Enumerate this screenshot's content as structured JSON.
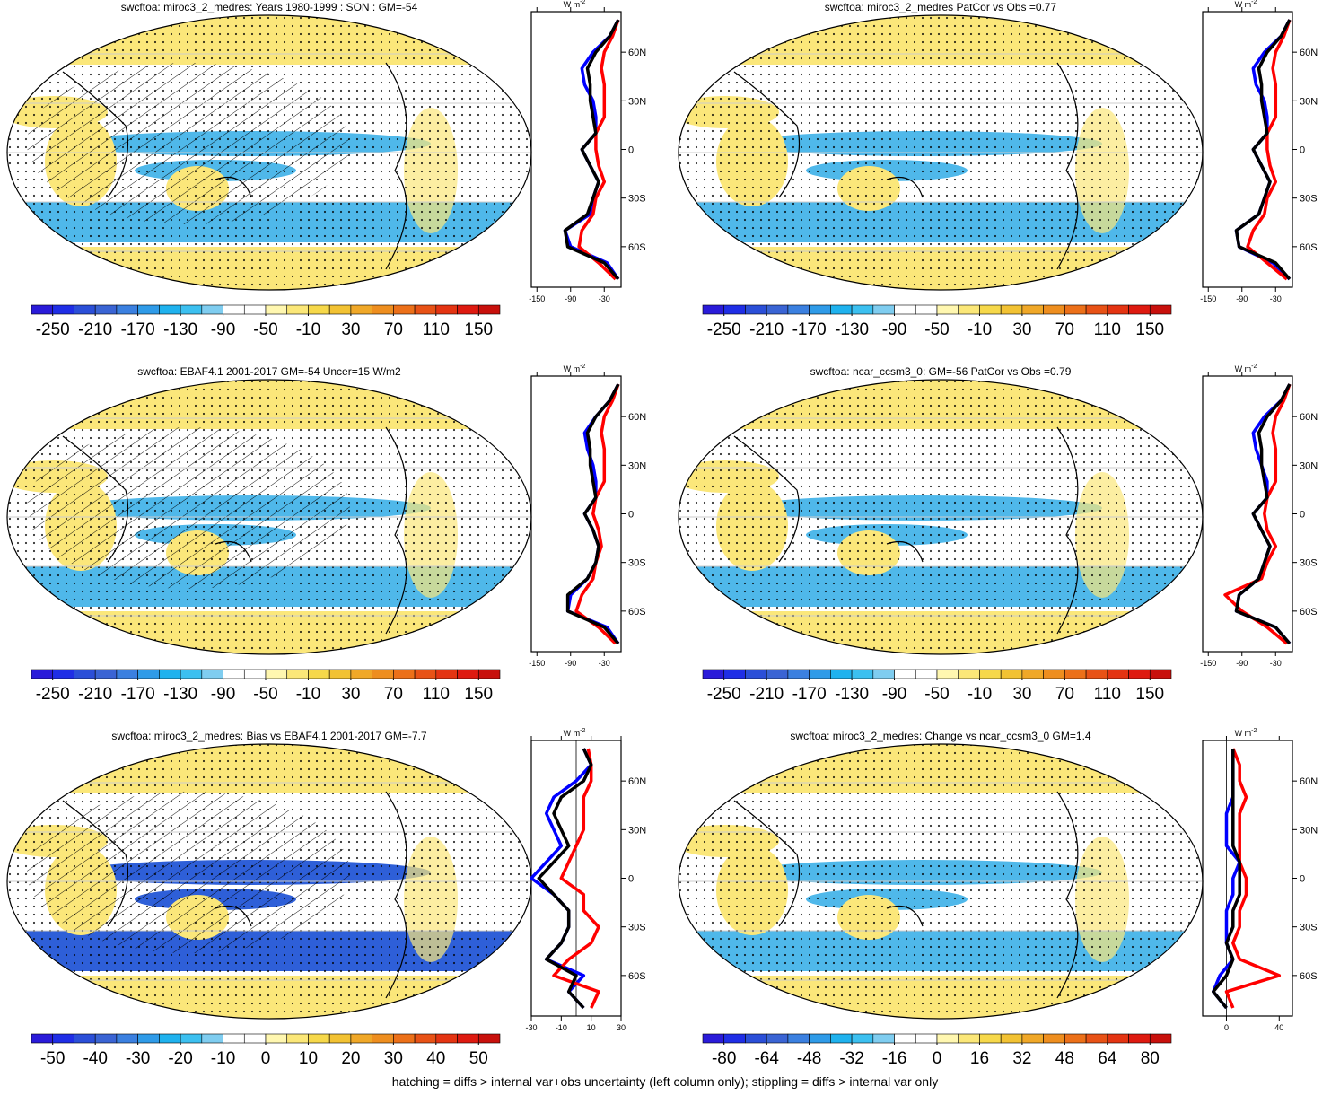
{
  "palette": [
    "#2a1bd9",
    "#1f2ee6",
    "#2b4fd8",
    "#3a64d4",
    "#3b80e0",
    "#2f9be8",
    "#1fb2ee",
    "#3cc0f0",
    "#7fcdf0",
    "#ffffff",
    "#ffffff",
    "#fff7b0",
    "#fbe778",
    "#f6d84a",
    "#f2c233",
    "#f0a828",
    "#ee8e1f",
    "#ec7019",
    "#e85216",
    "#e43412",
    "#de1a10",
    "#c8100c"
  ],
  "zonal_axes": {
    "ylim": [
      -85,
      85
    ],
    "yticks": [
      {
        "value": 60,
        "label": "60N"
      },
      {
        "value": 30,
        "label": "30N"
      },
      0,
      {
        "value": -30,
        "label": "30S"
      },
      {
        "value": -60,
        "label": "60S"
      }
    ],
    "lat": [
      -80,
      -70,
      -60,
      -50,
      -40,
      -30,
      -20,
      -10,
      0,
      10,
      20,
      30,
      40,
      50,
      60,
      70,
      80
    ],
    "xlabel": "W m",
    "xlabel_sup": "-2"
  },
  "panels": [
    {
      "title": "swcftoa: miroc3_2_medres: Years 1980-1999 : SON : GM=-54",
      "colorbar": {
        "lim": [
          -270,
          170
        ],
        "ticks": [
          -250,
          -210,
          -170,
          -130,
          -90,
          -50,
          -10,
          30,
          70,
          110,
          150
        ]
      },
      "zonal": {
        "xlim": [
          -160,
          0
        ],
        "xticks": [
          -150,
          -90,
          -30
        ],
        "series": [
          {
            "color": "#0000ff",
            "values": [
              -5,
              -25,
              -90,
              -100,
              -55,
              -50,
              -40,
              -55,
              -70,
              -45,
              -45,
              -50,
              -65,
              -70,
              -50,
              -20,
              -5
            ]
          },
          {
            "color": "#ff0000",
            "values": [
              -10,
              -40,
              -75,
              -70,
              -50,
              -45,
              -30,
              -40,
              -45,
              -45,
              -30,
              -30,
              -30,
              -35,
              -30,
              -15,
              -5
            ]
          },
          {
            "color": "#000000",
            "values": [
              -5,
              -30,
              -95,
              -100,
              -60,
              -50,
              -40,
              -55,
              -70,
              -45,
              -50,
              -55,
              -55,
              -60,
              -45,
              -20,
              -5
            ]
          }
        ]
      }
    },
    {
      "title": "swcftoa: miroc3_2_medres PatCor vs Obs =0.77",
      "colorbar": {
        "lim": [
          -270,
          170
        ],
        "ticks": [
          -250,
          -210,
          -170,
          -130,
          -90,
          -50,
          -10,
          30,
          70,
          110,
          150
        ]
      },
      "zonal": {
        "xlim": [
          -160,
          0
        ],
        "xticks": [
          -150,
          -90,
          -30
        ],
        "series": [
          {
            "color": "#0000ff",
            "values": [
              -5,
              -35,
              -95,
              -100,
              -60,
              -50,
              -40,
              -55,
              -70,
              -45,
              -45,
              -50,
              -65,
              -70,
              -50,
              -20,
              -5
            ]
          },
          {
            "color": "#ff0000",
            "values": [
              -10,
              -45,
              -80,
              -70,
              -50,
              -45,
              -30,
              -40,
              -45,
              -45,
              -30,
              -30,
              -30,
              -35,
              -30,
              -15,
              -5
            ]
          },
          {
            "color": "#000000",
            "values": [
              -5,
              -30,
              -95,
              -100,
              -60,
              -50,
              -40,
              -55,
              -70,
              -45,
              -50,
              -55,
              -55,
              -60,
              -45,
              -20,
              -5
            ]
          }
        ]
      }
    },
    {
      "title": "swcftoa: EBAF4.1 2001-2017 GM=-54 Uncer=15 W/m2",
      "colorbar": {
        "lim": [
          -270,
          170
        ],
        "ticks": [
          -250,
          -210,
          -170,
          -130,
          -90,
          -50,
          -10,
          30,
          70,
          110,
          150
        ]
      },
      "zonal": {
        "xlim": [
          -160,
          0
        ],
        "xticks": [
          -150,
          -90,
          -30
        ],
        "series": [
          {
            "color": "#0000ff",
            "values": [
              -5,
              -25,
              -95,
              -90,
              -60,
              -45,
              -40,
              -50,
              -65,
              -45,
              -45,
              -50,
              -60,
              -65,
              -45,
              -20,
              -5
            ]
          },
          {
            "color": "#ff0000",
            "values": [
              -10,
              -40,
              -80,
              -70,
              -50,
              -45,
              -35,
              -40,
              -50,
              -45,
              -30,
              -30,
              -30,
              -35,
              -30,
              -15,
              -5
            ]
          },
          {
            "color": "#000000",
            "values": [
              -5,
              -30,
              -95,
              -95,
              -60,
              -45,
              -40,
              -50,
              -65,
              -45,
              -50,
              -55,
              -55,
              -60,
              -45,
              -20,
              -5
            ]
          }
        ]
      }
    },
    {
      "title": "swcftoa: ncar_ccsm3_0: GM=-56 PatCor vs Obs =0.79",
      "colorbar": {
        "lim": [
          -270,
          170
        ],
        "ticks": [
          -250,
          -210,
          -170,
          -130,
          -90,
          -50,
          -10,
          30,
          70,
          110,
          150
        ]
      },
      "zonal": {
        "xlim": [
          -160,
          0
        ],
        "xticks": [
          -150,
          -90,
          -30
        ],
        "series": [
          {
            "color": "#0000ff",
            "values": [
              -5,
              -30,
              -100,
              -95,
              -60,
              -50,
              -40,
              -55,
              -70,
              -45,
              -45,
              -55,
              -65,
              -70,
              -50,
              -20,
              -5
            ]
          },
          {
            "color": "#ff0000",
            "values": [
              -10,
              -45,
              -90,
              -120,
              -55,
              -45,
              -30,
              -45,
              -50,
              -45,
              -30,
              -30,
              -30,
              -35,
              -30,
              -15,
              -5
            ]
          },
          {
            "color": "#000000",
            "values": [
              -5,
              -30,
              -100,
              -95,
              -60,
              -50,
              -40,
              -55,
              -70,
              -45,
              -50,
              -55,
              -55,
              -60,
              -45,
              -20,
              -5
            ]
          }
        ]
      }
    },
    {
      "title": "swcftoa: miroc3_2_medres: Bias vs EBAF4.1 2001-2017  GM=-7.7",
      "colorbar": {
        "lim": [
          -55,
          55
        ],
        "ticks": [
          -50,
          -40,
          -30,
          -20,
          -10,
          0,
          10,
          20,
          30,
          40,
          50
        ]
      },
      "zonal": {
        "xlim": [
          -30,
          30
        ],
        "xticks": [
          -30,
          -10,
          10,
          30
        ],
        "series": [
          {
            "color": "#0000ff",
            "values": [
              5,
              -5,
              5,
              -20,
              -10,
              -5,
              -5,
              -15,
              -30,
              -20,
              -10,
              -15,
              -20,
              -15,
              0,
              10,
              5
            ]
          },
          {
            "color": "#ff0000",
            "values": [
              10,
              15,
              -15,
              -5,
              10,
              15,
              5,
              5,
              -10,
              -5,
              0,
              5,
              5,
              5,
              10,
              10,
              8
            ]
          },
          {
            "color": "#000000",
            "values": [
              5,
              -5,
              0,
              -20,
              -10,
              -5,
              -5,
              -15,
              -25,
              -15,
              -5,
              -10,
              -15,
              -10,
              5,
              10,
              5
            ]
          }
        ]
      }
    },
    {
      "title": "swcftoa: miroc3_2_medres: Change vs ncar_ccsm3_0 GM=1.4",
      "colorbar": {
        "lim": [
          -88,
          88
        ],
        "ticks": [
          -80,
          -64,
          -48,
          -32,
          -16,
          0,
          16,
          32,
          48,
          64,
          80
        ]
      },
      "zonal": {
        "xlim": [
          -18,
          50
        ],
        "xticks": [
          0,
          40
        ],
        "series": [
          {
            "color": "#0000ff",
            "values": [
              0,
              -10,
              -5,
              5,
              0,
              0,
              0,
              5,
              5,
              10,
              0,
              0,
              0,
              5,
              5,
              5,
              5
            ]
          },
          {
            "color": "#ff0000",
            "values": [
              5,
              0,
              40,
              10,
              5,
              10,
              10,
              15,
              15,
              10,
              10,
              10,
              10,
              15,
              10,
              10,
              5
            ]
          },
          {
            "color": "#000000",
            "values": [
              0,
              -10,
              0,
              5,
              0,
              5,
              5,
              10,
              10,
              10,
              5,
              5,
              5,
              5,
              5,
              5,
              5
            ]
          }
        ]
      }
    }
  ],
  "footer": "hatching = diffs > internal var+obs uncertainty (left column only); stippling = diffs > internal var only"
}
